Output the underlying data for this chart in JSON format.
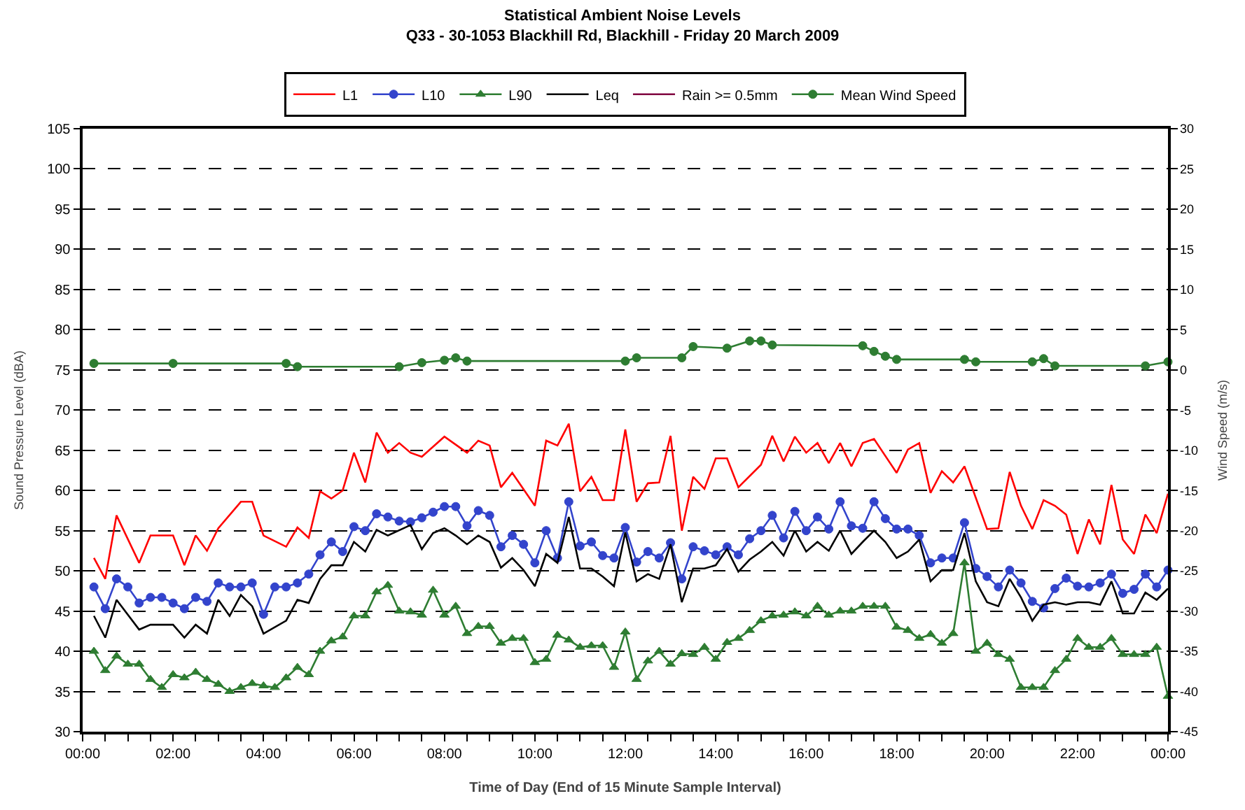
{
  "chart_data": {
    "type": "line",
    "title": "Statistical Ambient Noise Levels",
    "subtitle": "Q33 - 30-1053 Blackhill Rd, Blackhill - Friday 20 March 2009",
    "xlabel": "Time of Day (End of 15 Minute Sample Interval)",
    "ylabel": "Sound Pressure Level (dBA)",
    "y2label": "Wind Speed (m/s)",
    "xlim": [
      0,
      24
    ],
    "xticks": [
      {
        "value": 0,
        "label": "00:00"
      },
      {
        "value": 0.5,
        "label": null
      },
      {
        "value": 1,
        "label": null
      },
      {
        "value": 1.5,
        "label": null
      },
      {
        "value": 2,
        "label": "02:00"
      },
      {
        "value": 2.5,
        "label": null
      },
      {
        "value": 3,
        "label": null
      },
      {
        "value": 3.5,
        "label": null
      },
      {
        "value": 4,
        "label": "04:00"
      },
      {
        "value": 4.5,
        "label": null
      },
      {
        "value": 5,
        "label": null
      },
      {
        "value": 5.5,
        "label": null
      },
      {
        "value": 6,
        "label": "06:00"
      },
      {
        "value": 6.5,
        "label": null
      },
      {
        "value": 7,
        "label": null
      },
      {
        "value": 7.5,
        "label": null
      },
      {
        "value": 8,
        "label": "08:00"
      },
      {
        "value": 8.5,
        "label": null
      },
      {
        "value": 9,
        "label": null
      },
      {
        "value": 9.5,
        "label": null
      },
      {
        "value": 10,
        "label": "10:00"
      },
      {
        "value": 10.5,
        "label": null
      },
      {
        "value": 11,
        "label": null
      },
      {
        "value": 11.5,
        "label": null
      },
      {
        "value": 12,
        "label": "12:00"
      },
      {
        "value": 12.5,
        "label": null
      },
      {
        "value": 13,
        "label": null
      },
      {
        "value": 13.5,
        "label": null
      },
      {
        "value": 14,
        "label": "14:00"
      },
      {
        "value": 14.5,
        "label": null
      },
      {
        "value": 15,
        "label": null
      },
      {
        "value": 15.5,
        "label": null
      },
      {
        "value": 16,
        "label": "16:00"
      },
      {
        "value": 16.5,
        "label": null
      },
      {
        "value": 17,
        "label": null
      },
      {
        "value": 17.5,
        "label": null
      },
      {
        "value": 18,
        "label": "18:00"
      },
      {
        "value": 18.5,
        "label": null
      },
      {
        "value": 19,
        "label": null
      },
      {
        "value": 19.5,
        "label": null
      },
      {
        "value": 20,
        "label": "20:00"
      },
      {
        "value": 20.5,
        "label": null
      },
      {
        "value": 21,
        "label": null
      },
      {
        "value": 21.5,
        "label": null
      },
      {
        "value": 22,
        "label": "22:00"
      },
      {
        "value": 22.5,
        "label": null
      },
      {
        "value": 23,
        "label": null
      },
      {
        "value": 23.5,
        "label": null
      },
      {
        "value": 24,
        "label": "00:00"
      }
    ],
    "ylim": [
      30,
      105
    ],
    "yticks": [
      30,
      35,
      40,
      45,
      50,
      55,
      60,
      65,
      70,
      75,
      80,
      85,
      90,
      95,
      100,
      105
    ],
    "y2lim": [
      -45,
      30
    ],
    "y2ticks": [
      -45,
      -40,
      -35,
      -30,
      -25,
      -20,
      -15,
      -10,
      -5,
      0,
      5,
      10,
      15,
      20,
      25,
      30
    ],
    "grid": "y",
    "legend": "top",
    "series": [
      {
        "name": "L1",
        "color": "#ff0000",
        "marker": "none",
        "line_style": "solid",
        "x": [
          0.25,
          0.5,
          0.75,
          1.25,
          1.5,
          2.0,
          2.25,
          2.5,
          2.75,
          3.0,
          3.5,
          3.75,
          4.0,
          4.5,
          4.75,
          5.0,
          5.25,
          5.5,
          5.75,
          6.0,
          6.25,
          6.5,
          6.75,
          7.0,
          7.25,
          7.5,
          8.0,
          8.5,
          8.75,
          9.0,
          9.25,
          9.5,
          10.0,
          10.25,
          10.5,
          10.75,
          11.0,
          11.25,
          11.5,
          11.75,
          12.0,
          12.25,
          12.5,
          12.75,
          13.0,
          13.25,
          13.5,
          13.75,
          14.0,
          14.25,
          14.5,
          15.0,
          15.25,
          15.5,
          15.75,
          16.0,
          16.25,
          16.5,
          16.75,
          17.0,
          17.25,
          17.5,
          18.0,
          18.25,
          18.5,
          18.75,
          19.0,
          19.25,
          19.5,
          20.0,
          20.25,
          20.5,
          20.75,
          21.0,
          21.25,
          21.5,
          21.75,
          22.0,
          22.25,
          22.5,
          22.75,
          23.0,
          23.25,
          23.5,
          23.75,
          24.0
        ],
        "values": [
          51.6,
          49.0,
          56.9,
          51.0,
          54.4,
          54.4,
          50.7,
          54.4,
          52.5,
          55.3,
          58.6,
          58.6,
          54.4,
          53.0,
          55.4,
          54.1,
          59.9,
          59.0,
          60.0,
          64.7,
          61.0,
          67.2,
          64.7,
          65.9,
          64.7,
          64.2,
          66.7,
          64.7,
          66.2,
          65.6,
          60.4,
          62.2,
          58.1,
          66.2,
          65.6,
          68.3,
          59.9,
          61.7,
          58.8,
          58.8,
          67.6,
          58.6,
          60.9,
          61.0,
          66.8,
          55.0,
          61.7,
          60.2,
          64.0,
          64.0,
          60.4,
          63.2,
          66.8,
          63.6,
          66.7,
          64.7,
          65.9,
          63.4,
          65.9,
          63.0,
          65.9,
          66.4,
          62.2,
          65.1,
          65.9,
          59.7,
          62.4,
          61.0,
          63.0,
          55.2,
          55.3,
          62.3,
          58.1,
          55.2,
          58.8,
          58.1,
          57.0,
          52.1,
          56.4,
          53.3,
          60.7,
          53.9,
          52.1,
          57.0,
          54.7,
          59.6
        ]
      },
      {
        "name": "L10",
        "color": "#3344cc",
        "marker": "circle",
        "line_style": "solid",
        "x": [
          0.25,
          0.5,
          0.75,
          1.0,
          1.25,
          1.5,
          1.75,
          2.0,
          2.25,
          2.5,
          2.75,
          3.0,
          3.25,
          3.5,
          3.75,
          4.0,
          4.25,
          4.5,
          4.75,
          5.0,
          5.25,
          5.5,
          5.75,
          6.0,
          6.25,
          6.5,
          6.75,
          7.0,
          7.25,
          7.5,
          7.75,
          8.0,
          8.25,
          8.5,
          8.75,
          9.0,
          9.25,
          9.5,
          9.75,
          10.0,
          10.25,
          10.5,
          10.75,
          11.0,
          11.25,
          11.5,
          11.75,
          12.0,
          12.25,
          12.5,
          12.75,
          13.0,
          13.25,
          13.5,
          13.75,
          14.0,
          14.25,
          14.5,
          14.75,
          15.0,
          15.25,
          15.5,
          15.75,
          16.0,
          16.25,
          16.5,
          16.75,
          17.0,
          17.25,
          17.5,
          17.75,
          18.0,
          18.25,
          18.5,
          18.75,
          19.0,
          19.25,
          19.5,
          19.75,
          20.0,
          20.25,
          20.5,
          20.75,
          21.0,
          21.25,
          21.5,
          21.75,
          22.0,
          22.25,
          22.5,
          22.75,
          23.0,
          23.25,
          23.5,
          23.75,
          24.0
        ],
        "values": [
          48.0,
          45.3,
          49.0,
          48.0,
          46.0,
          46.7,
          46.7,
          46.0,
          45.3,
          46.7,
          46.2,
          48.5,
          48.0,
          48.0,
          48.5,
          44.6,
          48.0,
          48.0,
          48.5,
          49.6,
          52.0,
          53.6,
          52.4,
          55.5,
          55.0,
          57.1,
          56.7,
          56.2,
          56.1,
          56.6,
          57.3,
          58.0,
          58.0,
          55.6,
          57.5,
          56.9,
          53.0,
          54.4,
          53.3,
          51.0,
          55.0,
          51.6,
          58.6,
          53.1,
          53.6,
          51.9,
          51.6,
          55.4,
          51.1,
          52.4,
          51.6,
          53.5,
          49.0,
          53.0,
          52.5,
          52.0,
          53.0,
          52.0,
          54.0,
          55.0,
          56.9,
          54.1,
          57.4,
          55.0,
          56.7,
          55.2,
          58.6,
          55.6,
          55.3,
          58.6,
          56.5,
          55.2,
          55.2,
          54.4,
          51.0,
          51.6,
          51.6,
          56.0,
          50.3,
          49.3,
          48.0,
          50.1,
          48.5,
          46.2,
          45.4,
          47.8,
          49.1,
          48.1,
          48.0,
          48.5,
          49.6,
          47.2,
          47.7,
          49.6,
          48.0,
          50.1
        ]
      },
      {
        "name": "L90",
        "color": "#2e7d32",
        "marker": "triangle",
        "line_style": "solid",
        "x": [
          0.25,
          0.5,
          0.75,
          1.0,
          1.25,
          1.5,
          1.75,
          2.0,
          2.25,
          2.5,
          2.75,
          3.0,
          3.25,
          3.5,
          3.75,
          4.0,
          4.25,
          4.5,
          4.75,
          5.0,
          5.25,
          5.5,
          5.75,
          6.0,
          6.25,
          6.5,
          6.75,
          7.0,
          7.25,
          7.5,
          7.75,
          8.0,
          8.25,
          8.5,
          8.75,
          9.0,
          9.25,
          9.5,
          9.75,
          10.0,
          10.25,
          10.5,
          10.75,
          11.0,
          11.25,
          11.5,
          11.75,
          12.0,
          12.25,
          12.5,
          12.75,
          13.0,
          13.25,
          13.5,
          13.75,
          14.0,
          14.25,
          14.5,
          14.75,
          15.0,
          15.25,
          15.5,
          15.75,
          16.0,
          16.25,
          16.5,
          16.75,
          17.0,
          17.25,
          17.5,
          17.75,
          18.0,
          18.25,
          18.5,
          18.75,
          19.0,
          19.25,
          19.5,
          19.75,
          20.0,
          20.25,
          20.5,
          20.75,
          21.0,
          21.25,
          21.5,
          21.75,
          22.0,
          22.25,
          22.5,
          22.75,
          23.0,
          23.25,
          23.5,
          23.75,
          24.0
        ],
        "values": [
          40.0,
          37.6,
          39.4,
          38.4,
          38.4,
          36.5,
          35.5,
          37.1,
          36.7,
          37.4,
          36.5,
          35.9,
          35.0,
          35.5,
          36.0,
          35.7,
          35.5,
          36.7,
          38.0,
          37.1,
          40.0,
          41.3,
          41.8,
          44.4,
          44.4,
          47.4,
          48.2,
          45.0,
          44.9,
          44.5,
          47.6,
          44.5,
          45.6,
          42.2,
          43.1,
          43.1,
          41.0,
          41.6,
          41.6,
          38.6,
          39.0,
          42.0,
          41.4,
          40.5,
          40.7,
          40.7,
          38.0,
          42.4,
          36.5,
          38.8,
          40.0,
          38.4,
          39.7,
          39.6,
          40.5,
          39.0,
          41.1,
          41.6,
          42.6,
          43.8,
          44.4,
          44.5,
          44.9,
          44.4,
          45.6,
          44.5,
          45.0,
          45.0,
          45.6,
          45.6,
          45.6,
          43.0,
          42.6,
          41.6,
          42.1,
          41.0,
          42.2,
          51.0,
          40.0,
          41.0,
          39.6,
          39.0,
          35.5,
          35.5,
          35.5,
          37.6,
          39.0,
          41.6,
          40.5,
          40.5,
          41.6,
          39.6,
          39.6,
          39.6,
          40.5,
          34.4
        ]
      },
      {
        "name": "Leq",
        "color": "#000000",
        "marker": "none",
        "line_style": "solid",
        "x": [
          0.25,
          0.5,
          0.75,
          1.25,
          1.5,
          2.0,
          2.25,
          2.5,
          2.75,
          3.0,
          3.25,
          3.5,
          3.75,
          4.0,
          4.5,
          4.75,
          5.0,
          5.25,
          5.5,
          5.75,
          6.0,
          6.25,
          6.5,
          6.75,
          7.25,
          7.5,
          7.75,
          8.0,
          8.25,
          8.5,
          8.75,
          9.0,
          9.25,
          9.5,
          9.75,
          10.0,
          10.25,
          10.5,
          10.75,
          11.0,
          11.25,
          11.5,
          11.75,
          12.0,
          12.25,
          12.5,
          12.75,
          13.0,
          13.25,
          13.5,
          13.75,
          14.0,
          14.25,
          14.5,
          14.75,
          15.0,
          15.25,
          15.5,
          15.75,
          16.0,
          16.25,
          16.5,
          16.75,
          17.0,
          17.25,
          17.5,
          17.75,
          18.0,
          18.25,
          18.5,
          18.75,
          19.0,
          19.25,
          19.5,
          19.75,
          20.0,
          20.25,
          20.5,
          20.75,
          21.0,
          21.25,
          21.5,
          21.75,
          22.0,
          22.25,
          22.5,
          22.75,
          23.0,
          23.25,
          23.5,
          23.75,
          24.0
        ],
        "values": [
          44.4,
          41.7,
          46.4,
          42.7,
          43.3,
          43.3,
          41.7,
          43.3,
          42.2,
          46.4,
          44.4,
          47.0,
          45.6,
          42.2,
          43.8,
          46.4,
          46.0,
          49.0,
          50.7,
          50.7,
          53.6,
          52.4,
          55.1,
          54.4,
          55.7,
          52.7,
          54.7,
          55.3,
          54.4,
          53.3,
          54.4,
          53.6,
          50.4,
          51.6,
          50.1,
          48.1,
          52.1,
          51.0,
          56.7,
          50.3,
          50.3,
          49.3,
          48.1,
          54.8,
          48.7,
          49.6,
          49.0,
          53.3,
          46.1,
          50.3,
          50.3,
          50.7,
          52.7,
          49.9,
          51.4,
          52.4,
          53.6,
          51.9,
          55.0,
          52.4,
          53.6,
          52.5,
          55.0,
          52.1,
          53.6,
          55.0,
          53.6,
          51.6,
          52.4,
          53.9,
          48.7,
          50.1,
          50.1,
          54.7,
          48.7,
          46.1,
          45.6,
          49.0,
          46.7,
          43.8,
          45.8,
          46.1,
          45.8,
          46.1,
          46.1,
          45.8,
          48.7,
          44.7,
          44.7,
          47.3,
          46.4,
          47.8
        ]
      },
      {
        "name": "Rain >= 0.5mm",
        "color": "#800040",
        "marker": "none",
        "line_style": "solid",
        "axis": "y2",
        "x": [
          null
        ],
        "values": [
          null
        ]
      },
      {
        "name": "Mean Wind Speed",
        "color": "#2e7d32",
        "marker": "circle",
        "line_style": "solid",
        "axis": "y2",
        "x": [
          0.25,
          2.0,
          4.5,
          4.75,
          7.0,
          7.5,
          8.0,
          8.25,
          8.5,
          12.0,
          12.25,
          13.25,
          13.5,
          14.25,
          14.75,
          15.0,
          15.25,
          17.25,
          17.5,
          17.75,
          18.0,
          19.5,
          19.75,
          21.0,
          21.25,
          21.5,
          23.5,
          24.0
        ],
        "values": [
          0.8,
          0.8,
          0.8,
          0.4,
          0.4,
          0.9,
          1.2,
          1.5,
          1.1,
          1.1,
          1.5,
          1.5,
          2.9,
          2.7,
          3.6,
          3.6,
          3.1,
          3.0,
          2.3,
          1.7,
          1.3,
          1.3,
          1.0,
          1.0,
          1.4,
          0.5,
          0.5,
          1.0
        ]
      }
    ]
  }
}
